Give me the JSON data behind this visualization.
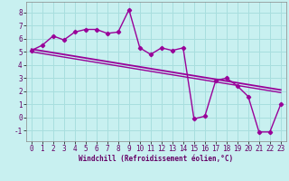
{
  "xlabel": "Windchill (Refroidissement éolien,°C)",
  "bg_color": "#c8f0f0",
  "grid_color": "#a8dede",
  "line_color": "#990099",
  "x_hours": [
    0,
    1,
    2,
    3,
    4,
    5,
    6,
    7,
    8,
    9,
    10,
    11,
    12,
    13,
    14,
    15,
    16,
    17,
    18,
    19,
    20,
    21,
    22,
    23
  ],
  "windchill": [
    5.1,
    5.5,
    6.2,
    5.9,
    6.5,
    6.7,
    6.7,
    6.4,
    6.5,
    8.2,
    5.3,
    4.8,
    5.3,
    5.1,
    5.3,
    -0.1,
    0.1,
    2.8,
    3.0,
    2.4,
    1.6,
    -1.1,
    -1.1,
    1.0
  ],
  "trend1_x": [
    0,
    23
  ],
  "trend1_y": [
    5.2,
    2.1
  ],
  "trend2_x": [
    0,
    23
  ],
  "trend2_y": [
    5.0,
    1.9
  ],
  "ylim": [
    -1.8,
    8.8
  ],
  "yticks": [
    -1,
    0,
    1,
    2,
    3,
    4,
    5,
    6,
    7,
    8
  ],
  "xticks": [
    0,
    1,
    2,
    3,
    4,
    5,
    6,
    7,
    8,
    9,
    10,
    11,
    12,
    13,
    14,
    15,
    16,
    17,
    18,
    19,
    20,
    21,
    22,
    23
  ],
  "xlabel_fontsize": 5.5,
  "tick_fontsize": 5.5,
  "line_width": 1.0,
  "marker_size": 2.2
}
